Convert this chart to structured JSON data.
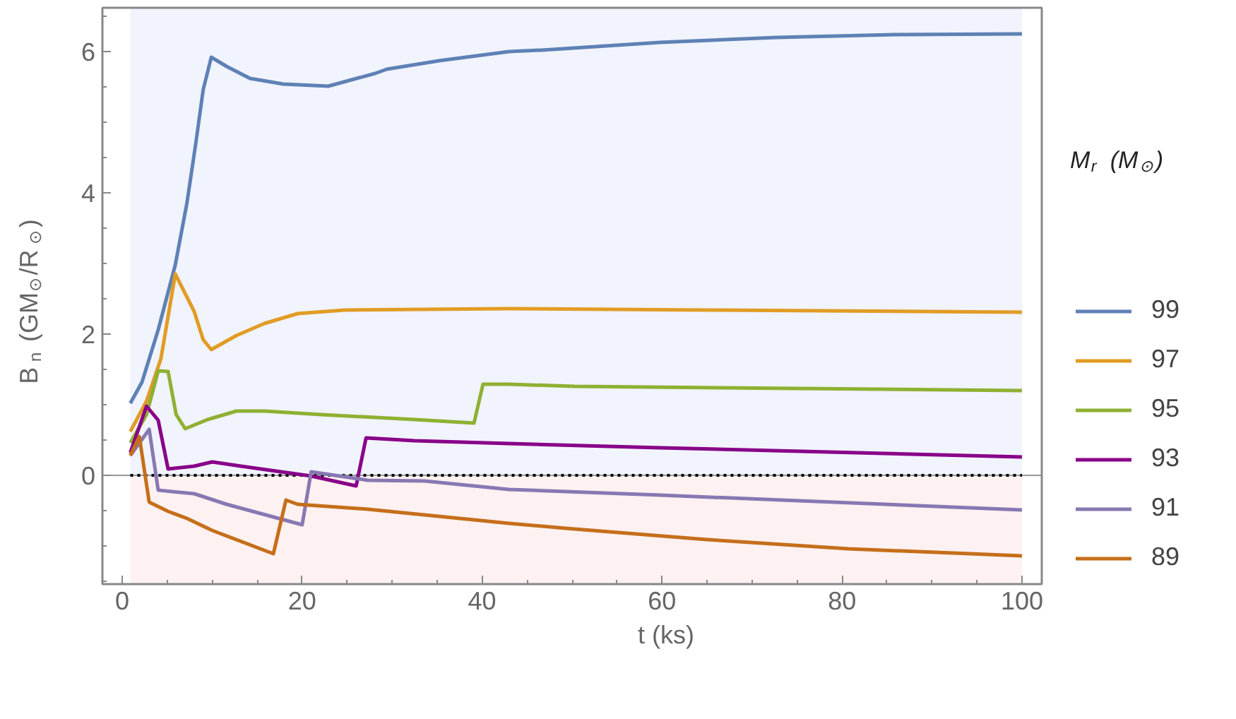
{
  "chart_data": {
    "type": "line",
    "xlabel": "t (ks)",
    "ylabel": "B$_{n}$ (GM$_{⊙}$/R$_{⊙}$)",
    "legend_title": "M$_{r}$ (M$_{⊙}$)",
    "xlim": [
      -2.2,
      102.2
    ],
    "ylim": [
      -1.54,
      6.62
    ],
    "xticks": [
      0,
      20,
      40,
      60,
      80,
      100
    ],
    "yticks": [
      0,
      2,
      4,
      6
    ],
    "grid": false,
    "legend": "right",
    "line_style": "solid",
    "series": [
      {
        "name": "99",
        "color": "#5e81b5",
        "x": [
          0.9,
          2.2,
          4.0,
          5.9,
          7.2,
          8.2,
          9.0,
          9.9,
          11.6,
          14.2,
          17.9,
          22.9,
          25.2,
          28.1,
          29.4,
          35.2,
          43,
          46.6,
          59.8,
          72.8,
          85.9,
          100
        ],
        "values": [
          1.02,
          1.32,
          2.06,
          2.98,
          3.86,
          4.72,
          5.46,
          5.92,
          5.79,
          5.62,
          5.54,
          5.51,
          5.59,
          5.69,
          5.75,
          5.87,
          6.0,
          6.02,
          6.13,
          6.2,
          6.24,
          6.25
        ]
      },
      {
        "name": "97",
        "color": "#e19c24",
        "x": [
          0.9,
          2.7,
          4.3,
          5.9,
          8.0,
          9.0,
          9.9,
          12.7,
          15.8,
          19.5,
          24.7,
          43,
          65,
          100
        ],
        "values": [
          0.62,
          1.05,
          1.65,
          2.85,
          2.32,
          1.92,
          1.78,
          1.98,
          2.15,
          2.29,
          2.34,
          2.36,
          2.34,
          2.31
        ]
      },
      {
        "name": "95",
        "color": "#8fb032",
        "x": [
          0.9,
          2.7,
          4.0,
          5.1,
          6.0,
          7.0,
          9.5,
          12.7,
          15.8,
          22.1,
          32.5,
          39.1,
          40.1,
          43,
          50.3,
          100
        ],
        "values": [
          0.46,
          0.86,
          1.48,
          1.47,
          0.86,
          0.66,
          0.79,
          0.91,
          0.91,
          0.86,
          0.79,
          0.74,
          1.29,
          1.29,
          1.26,
          1.2
        ]
      },
      {
        "name": "93",
        "color": "#880088",
        "x": [
          0.9,
          2.7,
          4.0,
          5.1,
          8.0,
          10.0,
          13.2,
          21.0,
          26.0,
          27.1,
          32.5,
          43,
          59.8,
          100
        ],
        "values": [
          0.32,
          0.98,
          0.78,
          0.09,
          0.13,
          0.19,
          0.13,
          -0.01,
          -0.15,
          0.53,
          0.49,
          0.45,
          0.39,
          0.26
        ]
      },
      {
        "name": "91",
        "color": "#8778b3",
        "x": [
          0.9,
          3.0,
          4.0,
          8.0,
          11.6,
          20.0,
          21.0,
          27.3,
          33.6,
          43,
          59.8,
          100
        ],
        "values": [
          0.28,
          0.65,
          -0.21,
          -0.26,
          -0.41,
          -0.7,
          0.05,
          -0.07,
          -0.08,
          -0.2,
          -0.28,
          -0.49
        ]
      },
      {
        "name": "89",
        "color": "#c56e1a",
        "x": [
          0.9,
          1.9,
          3.0,
          5.1,
          7.2,
          10.0,
          16.8,
          18.2,
          19.5,
          27.3,
          43,
          49.3,
          65,
          80.7,
          100
        ],
        "values": [
          0.28,
          0.55,
          -0.38,
          -0.51,
          -0.61,
          -0.78,
          -1.11,
          -0.35,
          -0.41,
          -0.48,
          -0.68,
          -0.75,
          -0.91,
          -1.04,
          -1.14
        ]
      }
    ],
    "bands": [
      {
        "axis": "y",
        "from": 0,
        "to": 6.62,
        "color": "#f1f3fd"
      },
      {
        "axis": "y",
        "from": -1.54,
        "to": 0,
        "color": "#fdf1f1"
      }
    ],
    "ref_lines": [
      {
        "axis": "y",
        "value": 0,
        "color": "#000000",
        "line_style": "dotted"
      }
    ]
  }
}
